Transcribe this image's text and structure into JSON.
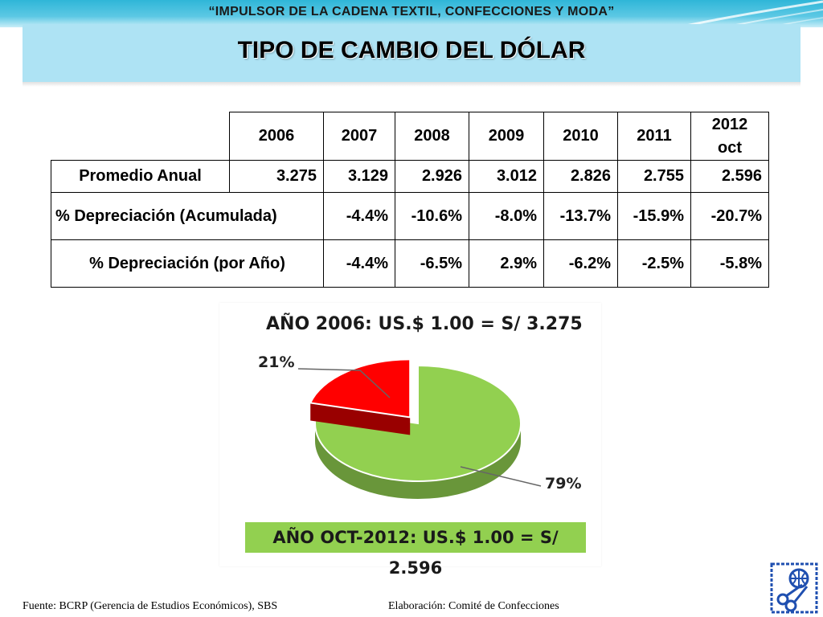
{
  "header": {
    "program_title": "“IMPULSOR DE LA CADENA TEXTIL, CONFECCIONES Y MODA”",
    "main_title": "TIPO DE CAMBIO DEL DÓLAR"
  },
  "table": {
    "years": [
      "2006",
      "2007",
      "2008",
      "2009",
      "2010",
      "2011"
    ],
    "last_year_line1": "2012",
    "last_year_line2": "oct",
    "rows": {
      "promedio": {
        "label": "Promedio Anual",
        "values": [
          "3.275",
          "3.129",
          "2.926",
          "3.012",
          "2.826",
          "2.755",
          "2.596"
        ]
      },
      "acumulada": {
        "label": "% Depreciación (Acumulada)",
        "values": [
          "-4.4%",
          "-10.6%",
          "-8.0%",
          "-13.7%",
          "-15.9%",
          "-20.7%"
        ]
      },
      "por_anio": {
        "label": "% Depreciación (por Año)",
        "values": [
          "-4.4%",
          "-6.5%",
          "2.9%",
          "-6.2%",
          "-2.5%",
          "-5.8%"
        ]
      }
    }
  },
  "chart_data": {
    "type": "pie",
    "title": "AÑO 2006: US.$ 1.00 = S/ 3.275",
    "categories": [
      "",
      ""
    ],
    "values": [
      21,
      79
    ],
    "data_labels": [
      "21%",
      "79%"
    ],
    "colors": [
      "#ff0000",
      "#92d050"
    ],
    "footer": "AÑO OCT-2012: US.$ 1.00 = S/ 2.596"
  },
  "footer": {
    "source": "Fuente: BCRP (Gerencia de Estudios Económicos), SBS",
    "credit": "Elaboración: Comité de Confecciones"
  },
  "logo": {
    "icon": "globe-scissors-logo",
    "color": "#1f4fb0"
  }
}
